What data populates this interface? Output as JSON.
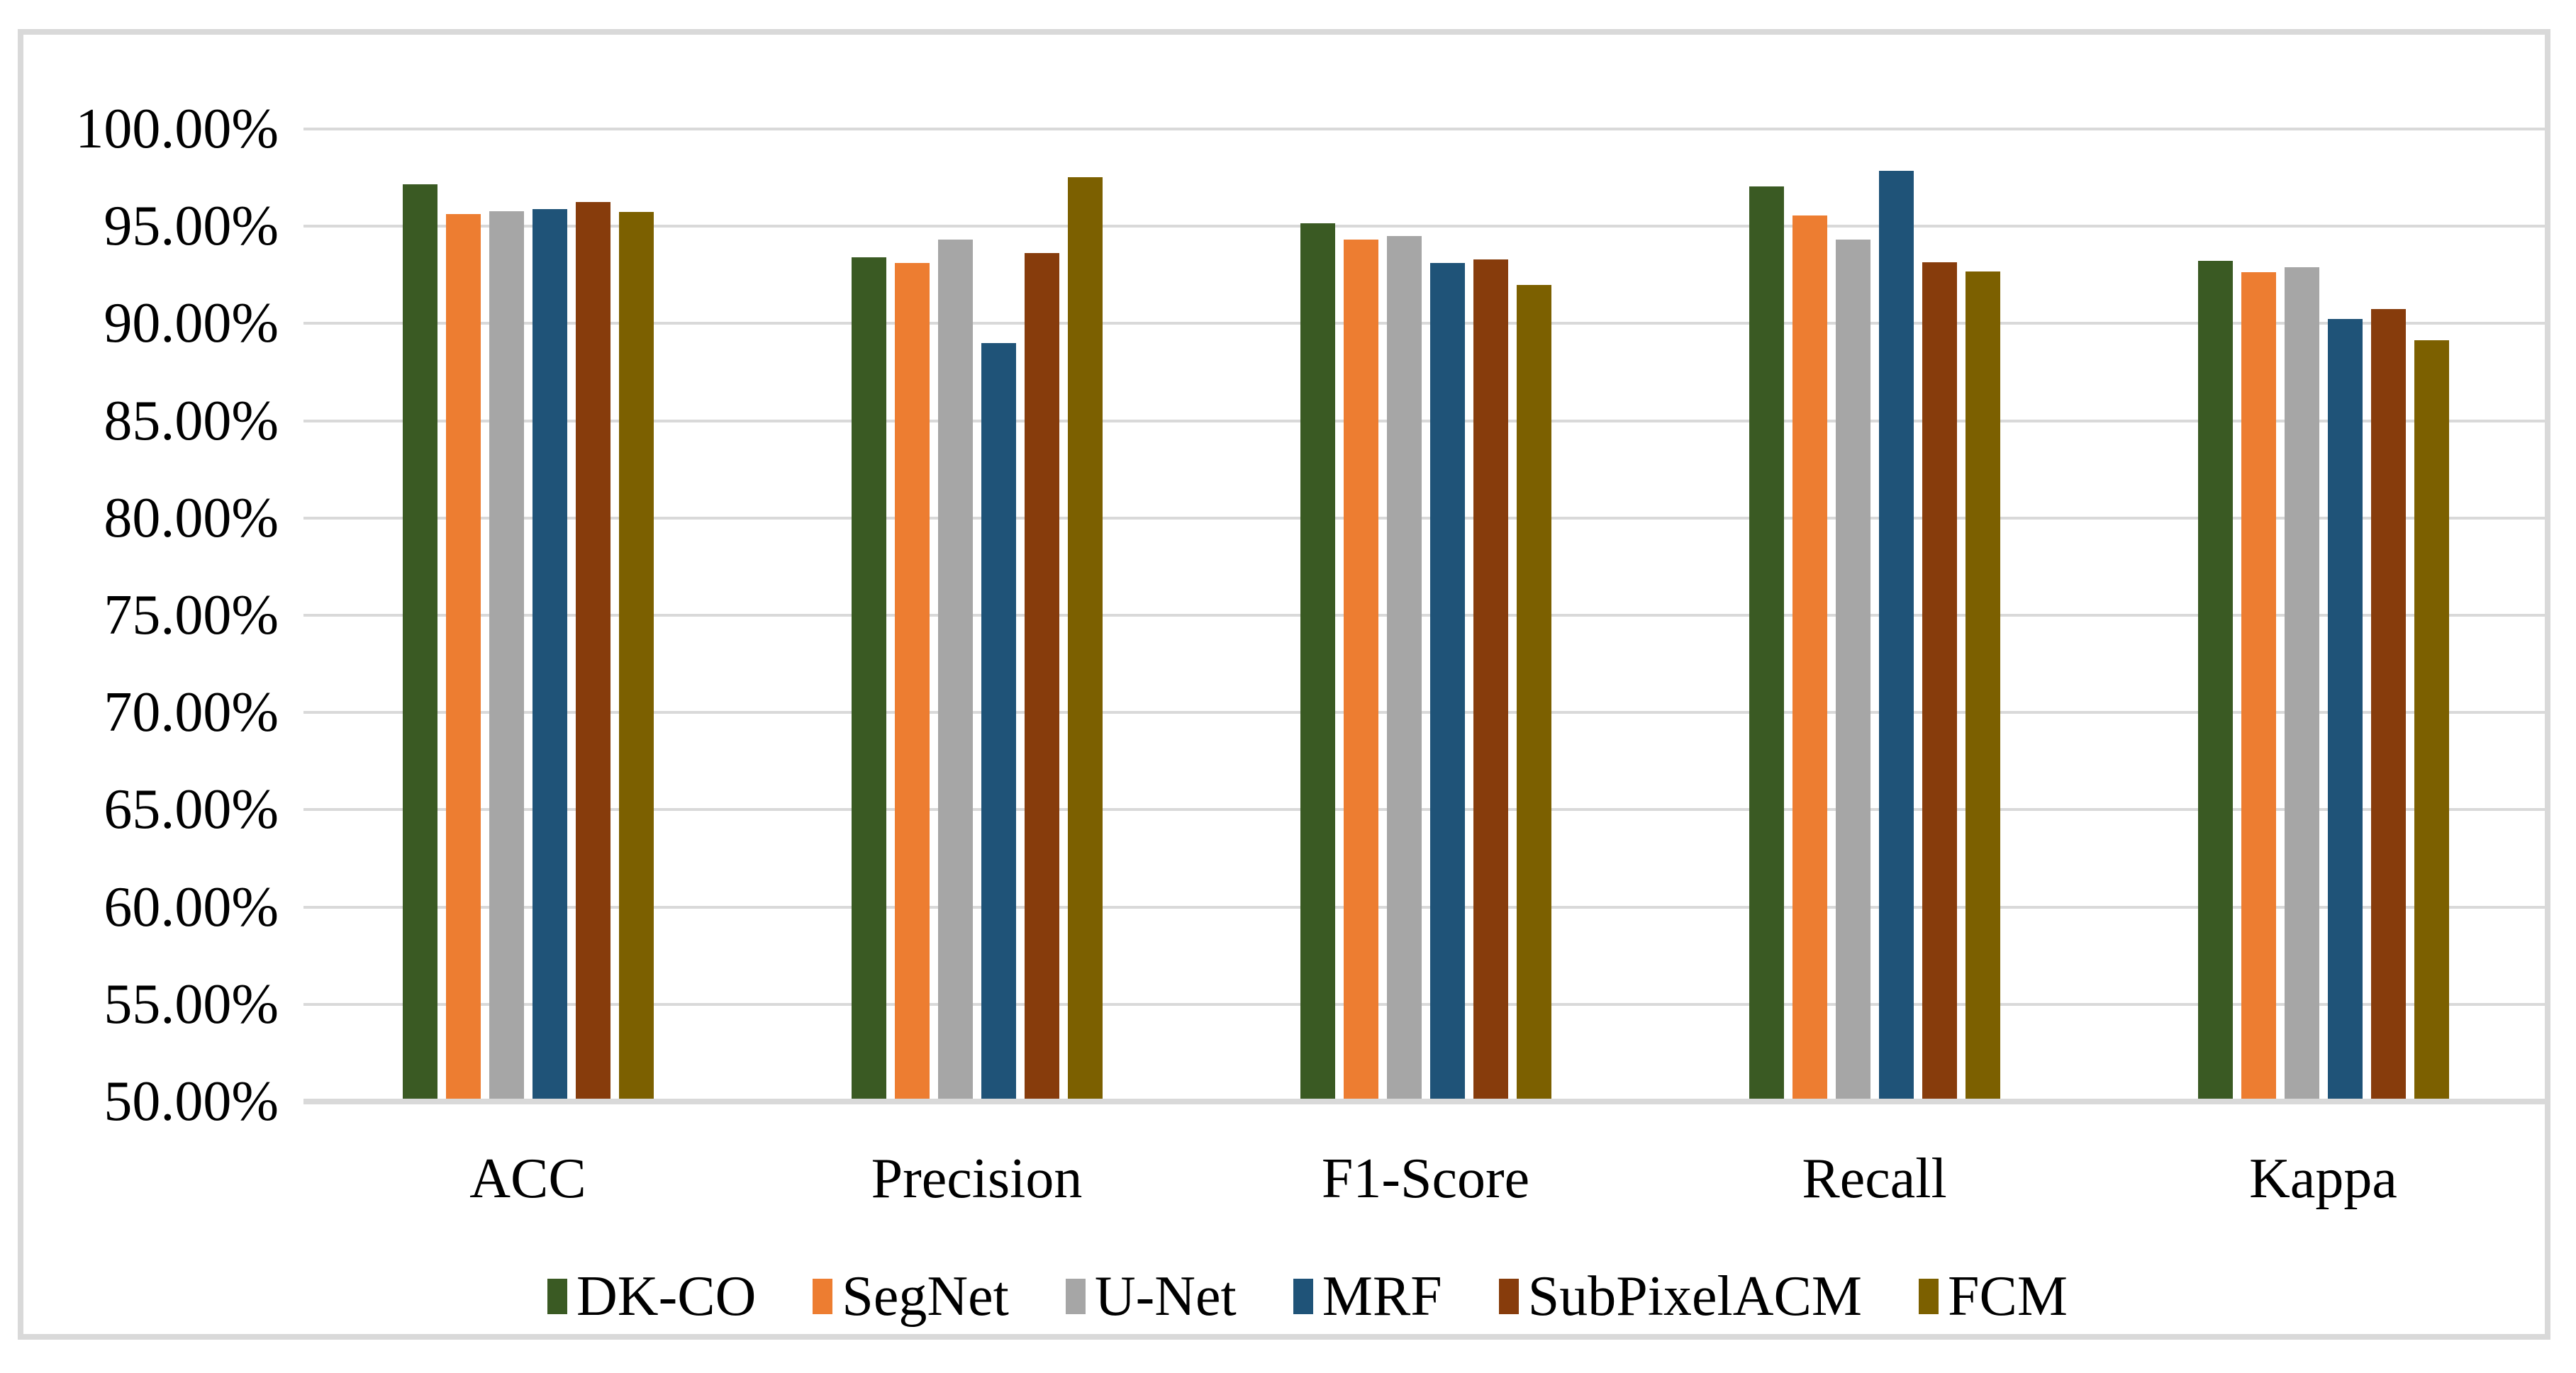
{
  "chart_data": {
    "type": "bar",
    "title": "",
    "categories": [
      "ACC",
      "Precision",
      "F1-Score",
      "Recall",
      "Kappa"
    ],
    "series": [
      {
        "name": "DK-CO",
        "color": "#3A5A23",
        "values": [
          97.15,
          93.42,
          95.17,
          97.06,
          93.21
        ]
      },
      {
        "name": "SegNet",
        "color": "#ED7D31",
        "values": [
          95.63,
          93.13,
          94.32,
          95.57,
          92.65
        ]
      },
      {
        "name": "U-Net",
        "color": "#A6A6A6",
        "values": [
          95.78,
          94.3,
          94.49,
          94.32,
          92.91
        ]
      },
      {
        "name": "MRF",
        "color": "#1F5378",
        "values": [
          95.9,
          89.0,
          93.11,
          97.85,
          90.22
        ]
      },
      {
        "name": "SubPixelACM",
        "color": "#873C0C",
        "values": [
          96.26,
          93.62,
          93.31,
          93.14,
          90.73
        ]
      },
      {
        "name": "FCM",
        "color": "#7C6000",
        "values": [
          95.74,
          97.54,
          92.0,
          92.66,
          89.15
        ]
      }
    ],
    "y_axis": {
      "min": 50,
      "max": 100,
      "step": 5,
      "tick_labels": [
        "100.00%",
        "95.00%",
        "90.00%",
        "85.00%",
        "80.00%",
        "75.00%",
        "70.00%",
        "65.00%",
        "60.00%",
        "55.00%",
        "50.00%"
      ]
    },
    "grid": true,
    "legend_position": "bottom",
    "value_format": "percent"
  },
  "colors": {
    "gridline": "#D9D9D9",
    "axis_line": "#D9D9D9",
    "frame_border": "#D9D9D9",
    "background": "#FFFFFF",
    "text": "#000000"
  }
}
